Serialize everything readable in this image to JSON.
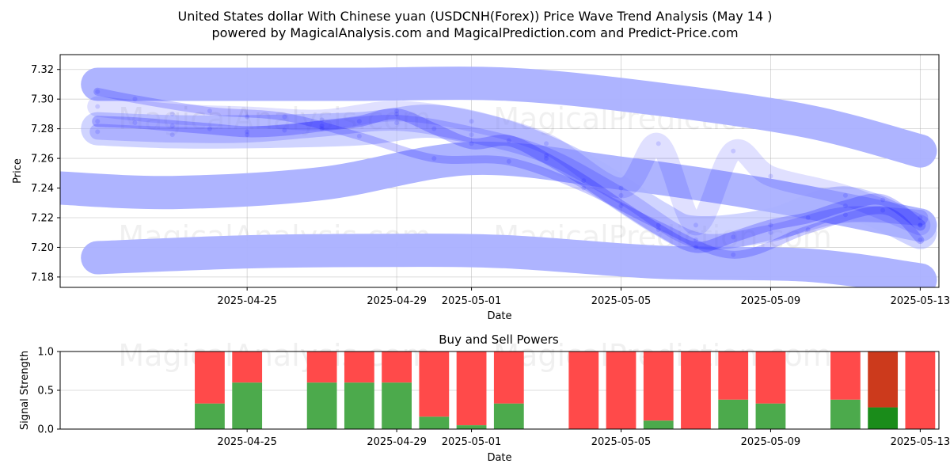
{
  "title_line1": "United States dollar With Chinese yuan (USDCNH(Forex)) Price Wave Trend Analysis (May 14 )",
  "title_line2": "powered by MagicalAnalysis.com and MagicalPrediction.com and Predict-Price.com",
  "watermarks": [
    "MagicalAnalysis.com",
    "MagicalPrediction.com"
  ],
  "colors": {
    "wave": "#0000ff",
    "band": "#aab0ff",
    "buy": "#4caa4c",
    "sell": "#ff4a4a",
    "buy_last": "#1a8c1a",
    "sell_last": "#cc3a1c"
  },
  "chart_data": [
    {
      "type": "line",
      "title": "",
      "xlabel": "Date",
      "ylabel": "Price",
      "xlim": [
        "2025-04-20",
        "2025-05-13.5"
      ],
      "ylim": [
        7.173,
        7.33
      ],
      "xticks": [
        "2025-04-25",
        "2025-04-29",
        "2025-05-01",
        "2025-05-05",
        "2025-05-09",
        "2025-05-13"
      ],
      "yticks": [
        "7.18",
        "7.20",
        "7.22",
        "7.24",
        "7.26",
        "7.28",
        "7.30",
        "7.32"
      ],
      "grid": true,
      "bands": [
        {
          "name": "",
          "x": [
            "2025-04-21",
            "2025-04-24",
            "2025-04-28",
            "2025-05-02",
            "2025-05-06",
            "2025-05-10",
            "2025-05-13"
          ],
          "y": [
            7.31,
            7.31,
            7.31,
            7.31,
            7.3,
            7.285,
            7.265
          ]
        },
        {
          "name": "",
          "x": [
            "2025-04-20",
            "2025-04-23",
            "2025-04-27",
            "2025-05-01",
            "2025-05-05",
            "2025-05-09",
            "2025-05-13"
          ],
          "y": [
            7.24,
            7.237,
            7.243,
            7.26,
            7.25,
            7.235,
            7.215
          ]
        },
        {
          "name": "",
          "x": [
            "2025-04-21",
            "2025-04-25",
            "2025-04-29",
            "2025-05-02",
            "2025-05-06",
            "2025-05-10",
            "2025-05-13"
          ],
          "y": [
            7.193,
            7.197,
            7.198,
            7.197,
            7.19,
            7.188,
            7.178
          ]
        },
        {
          "name": "",
          "x": [
            "2025-04-21",
            "2025-04-23",
            "2025-04-25",
            "2025-04-28",
            "2025-04-30",
            "2025-05-02",
            "2025-05-04",
            "2025-05-06",
            "2025-05-07",
            "2025-05-09",
            "2025-05-11",
            "2025-05-13"
          ],
          "y": [
            7.28,
            7.278,
            7.278,
            7.28,
            7.285,
            7.274,
            7.252,
            7.22,
            7.21,
            7.215,
            7.23,
            7.21
          ]
        }
      ],
      "series": [
        {
          "name": "",
          "x": [
            "2025-04-21",
            "2025-04-22",
            "2025-04-23",
            "2025-04-24",
            "2025-04-25",
            "2025-04-26",
            "2025-04-27",
            "2025-04-28",
            "2025-04-29",
            "2025-04-30",
            "2025-05-01",
            "2025-05-02",
            "2025-05-03",
            "2025-05-04",
            "2025-05-05",
            "2025-05-06",
            "2025-05-07",
            "2025-05-08",
            "2025-05-09",
            "2025-05-10",
            "2025-05-11",
            "2025-05-12",
            "2025-05-13"
          ],
          "y": [
            7.285,
            7.284,
            7.282,
            7.28,
            7.278,
            7.279,
            7.282,
            7.285,
            7.29,
            7.28,
            7.27,
            7.272,
            7.26,
            7.245,
            7.228,
            7.212,
            7.2,
            7.207,
            7.215,
            7.22,
            7.228,
            7.232,
            7.215
          ]
        },
        {
          "name": "",
          "x": [
            "2025-04-21",
            "2025-04-23",
            "2025-04-25",
            "2025-04-27",
            "2025-04-29",
            "2025-05-01",
            "2025-05-03",
            "2025-05-05",
            "2025-05-07",
            "2025-05-09",
            "2025-05-11",
            "2025-05-13"
          ],
          "y": [
            7.278,
            7.276,
            7.276,
            7.28,
            7.284,
            7.276,
            7.262,
            7.235,
            7.205,
            7.21,
            7.222,
            7.22
          ]
        },
        {
          "name": "",
          "x": [
            "2025-04-21",
            "2025-04-23",
            "2025-04-25",
            "2025-04-27",
            "2025-04-29",
            "2025-05-01",
            "2025-05-03",
            "2025-05-05",
            "2025-05-06",
            "2025-05-07",
            "2025-05-08",
            "2025-05-09",
            "2025-05-11",
            "2025-05-13"
          ],
          "y": [
            7.295,
            7.29,
            7.288,
            7.286,
            7.292,
            7.285,
            7.27,
            7.24,
            7.27,
            7.215,
            7.265,
            7.248,
            7.235,
            7.215
          ]
        },
        {
          "name": "",
          "x": [
            "2025-04-21",
            "2025-04-22",
            "2025-04-24",
            "2025-04-26",
            "2025-04-28",
            "2025-04-30",
            "2025-05-02",
            "2025-05-04",
            "2025-05-06",
            "2025-05-08",
            "2025-05-10",
            "2025-05-12",
            "2025-05-13"
          ],
          "y": [
            7.305,
            7.3,
            7.292,
            7.288,
            7.275,
            7.26,
            7.258,
            7.24,
            7.215,
            7.195,
            7.212,
            7.225,
            7.205
          ]
        }
      ]
    },
    {
      "type": "bar",
      "title": "Buy and Sell Powers",
      "xlabel": "Date",
      "ylabel": "Signal Strength",
      "ylim": [
        0,
        1.0
      ],
      "yticks": [
        "0.0",
        "0.5",
        "1.0"
      ],
      "xticks": [
        "2025-04-25",
        "2025-04-29",
        "2025-05-01",
        "2025-05-05",
        "2025-05-09",
        "2025-05-13"
      ],
      "grid": true,
      "categories": [
        "2025-04-24",
        "2025-04-25",
        "2025-04-27",
        "2025-04-28",
        "2025-04-29",
        "2025-04-30",
        "2025-05-01",
        "2025-05-02",
        "2025-05-04",
        "2025-05-05",
        "2025-05-06",
        "2025-05-07",
        "2025-05-08",
        "2025-05-09",
        "2025-05-11",
        "2025-05-12",
        "2025-05-13"
      ],
      "series": [
        {
          "name": "",
          "values": [
            0.33,
            0.6,
            0.6,
            0.6,
            0.6,
            0.16,
            0.05,
            0.33,
            0.0,
            0.0,
            0.11,
            0.0,
            0.38,
            0.33,
            0.38,
            0.28,
            0.0
          ]
        },
        {
          "name": "",
          "values": [
            0.67,
            0.4,
            0.4,
            0.4,
            0.4,
            0.84,
            0.95,
            0.67,
            1.0,
            1.0,
            0.89,
            1.0,
            0.62,
            0.67,
            0.62,
            0.72,
            1.0
          ]
        }
      ]
    }
  ]
}
